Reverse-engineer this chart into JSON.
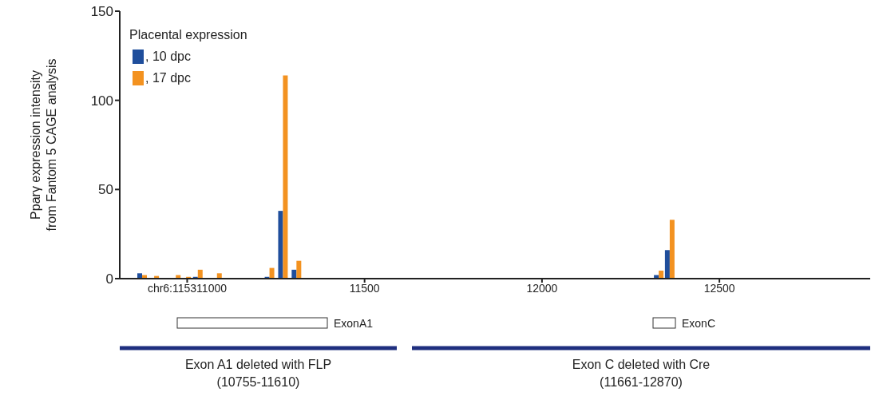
{
  "chart_data": {
    "type": "bar",
    "ylabel": "Pparγ expression intensity\nfrom Fantom 5 CAGE analysis",
    "legend_title": "Placental expression",
    "legend": "top left",
    "x": [
      10874,
      10908,
      10969,
      10998,
      11031,
      11085,
      11233,
      11271,
      11309,
      12330,
      12361
    ],
    "series": [
      {
        "name": ", 10 dpc",
        "color": "#1f4e9c",
        "values": [
          3,
          null,
          null,
          null,
          1,
          null,
          1,
          38,
          5,
          2,
          16
        ]
      },
      {
        "name": ", 17 dpc",
        "color": "#f39220",
        "values": [
          2,
          1.5,
          2,
          1,
          5,
          3,
          6,
          114,
          10,
          4.5,
          33
        ]
      }
    ],
    "xlim": [
      10810,
      12925
    ],
    "xticks": [
      {
        "value": 11000,
        "label": "chr6:115311000"
      },
      11500,
      12000,
      12500
    ],
    "ylim": [
      0,
      150
    ],
    "yticks": [
      0,
      50,
      100,
      150
    ],
    "grid": false,
    "annotations": [
      "ExonA1",
      "ExonC",
      "Exon A1 deleted with FLP\n(10755-11610)",
      "Exon C deleted with Cre\n(11661-12870)"
    ]
  }
}
